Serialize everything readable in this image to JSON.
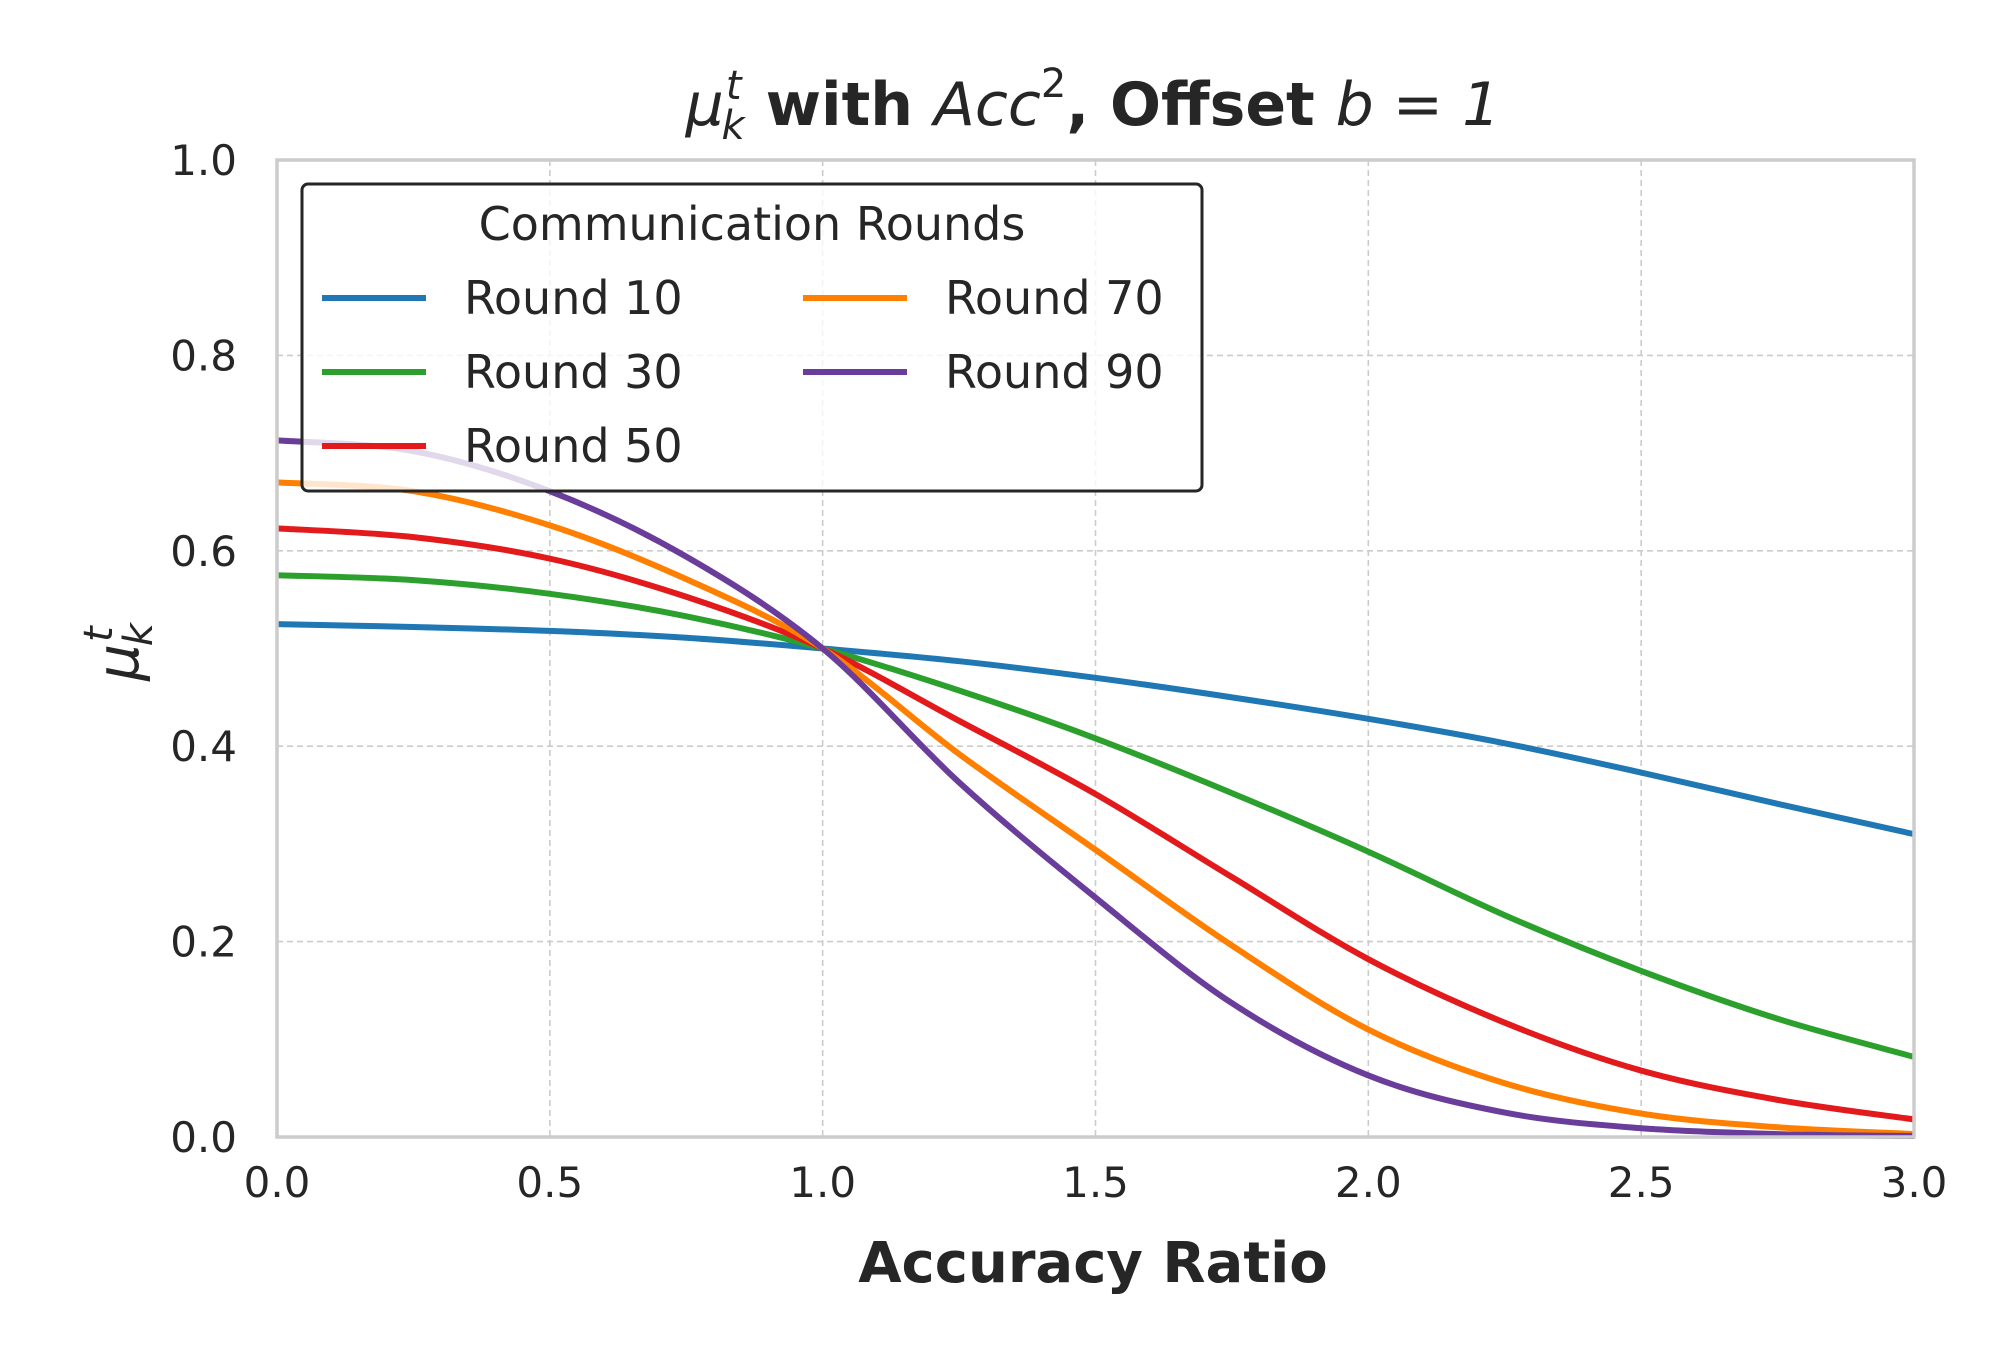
{
  "chart_data": {
    "type": "line",
    "title": {
      "mu": "μ",
      "sub": "k",
      "sup": "t",
      "with": " with ",
      "acc": "Acc",
      "acc_sup": "2",
      "offset": ", Offset ",
      "b_eq": "b = 1"
    },
    "xlabel": "Accuracy Ratio",
    "ylabel": {
      "mu": "μ",
      "sub": "k",
      "sup": "t"
    },
    "xlim": [
      0,
      3
    ],
    "ylim": [
      0,
      1
    ],
    "xticks": [
      "0.0",
      "0.5",
      "1.0",
      "1.5",
      "2.0",
      "2.5",
      "3.0"
    ],
    "yticks": [
      "0.0",
      "0.2",
      "0.4",
      "0.6",
      "0.8",
      "1.0"
    ],
    "grid": true,
    "legend": {
      "title": "Communication Rounds",
      "placement": "top-left",
      "columns": 2
    },
    "x": [
      0,
      0.25,
      0.5,
      0.75,
      1.0,
      1.25,
      1.5,
      1.75,
      2.0,
      2.25,
      2.5,
      2.75,
      3.0
    ],
    "series": [
      {
        "name": "Round 10",
        "color": "#1f77b4",
        "values": [
          0.525,
          0.522,
          0.518,
          0.511,
          0.5,
          0.487,
          0.47,
          0.45,
          0.428,
          0.403,
          0.373,
          0.341,
          0.31
        ]
      },
      {
        "name": "Round 30",
        "color": "#2ca02c",
        "values": [
          0.575,
          0.57,
          0.556,
          0.533,
          0.5,
          0.457,
          0.408,
          0.352,
          0.292,
          0.227,
          0.17,
          0.121,
          0.082
        ]
      },
      {
        "name": "Round 50",
        "color": "#e31a1c",
        "values": [
          0.623,
          0.614,
          0.592,
          0.553,
          0.5,
          0.426,
          0.351,
          0.266,
          0.182,
          0.117,
          0.068,
          0.038,
          0.018
        ]
      },
      {
        "name": "Round 70",
        "color": "#ff7f00",
        "values": [
          0.67,
          0.661,
          0.626,
          0.571,
          0.5,
          0.392,
          0.294,
          0.196,
          0.11,
          0.055,
          0.024,
          0.01,
          0.003
        ]
      },
      {
        "name": "Round 90",
        "color": "#6a3d9a",
        "values": [
          0.713,
          0.702,
          0.661,
          0.594,
          0.5,
          0.363,
          0.245,
          0.137,
          0.063,
          0.025,
          0.009,
          0.003,
          0.001
        ]
      }
    ]
  }
}
